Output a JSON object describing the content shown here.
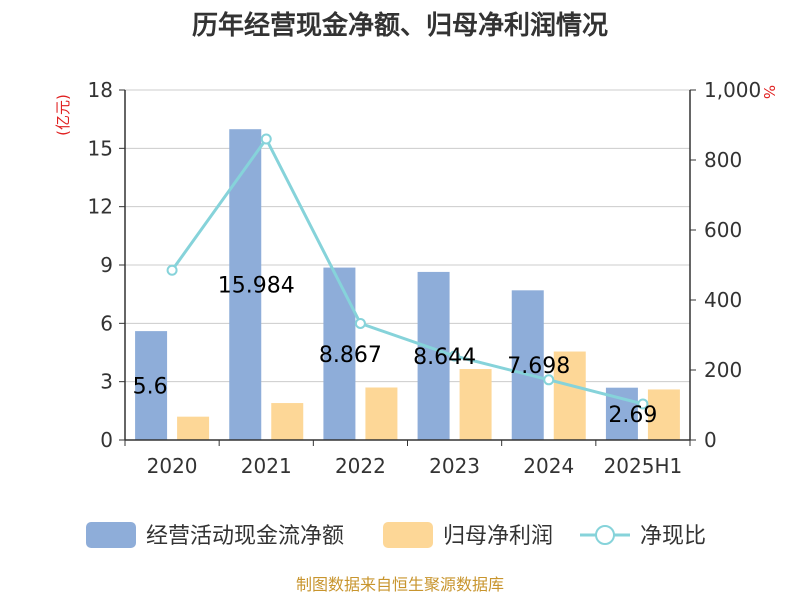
{
  "chart_data": {
    "type": "bar",
    "title": "历年经营现金净额、归母净利润情况",
    "categories": [
      "2020",
      "2021",
      "2022",
      "2023",
      "2024",
      "2025H1"
    ],
    "left_axis": {
      "unit": "(亿元)",
      "ylim": [
        0,
        18
      ],
      "ticks": [
        "0",
        "3",
        "6",
        "9",
        "12",
        "15",
        "18"
      ]
    },
    "right_axis": {
      "unit": "%",
      "ylim": [
        0,
        1000
      ],
      "ticks": [
        "0",
        "200",
        "400",
        "600",
        "800",
        "1,000"
      ]
    },
    "series": [
      {
        "name": "经营活动现金流净额",
        "type": "bar",
        "axis": "left",
        "color": "#8eadd9",
        "values": [
          5.6,
          15.984,
          8.867,
          8.644,
          7.698,
          2.69
        ],
        "labels": [
          "5.6",
          "15.984",
          "8.867",
          "8.644",
          "7.698",
          "2.69"
        ]
      },
      {
        "name": "归母净利润",
        "type": "bar",
        "axis": "left",
        "color": "#fdd797",
        "values": [
          1.2,
          1.9,
          2.7,
          3.65,
          4.55,
          2.6
        ]
      },
      {
        "name": "净现比",
        "type": "line",
        "axis": "right",
        "color": "#86d3da",
        "values": [
          485,
          860,
          333,
          240,
          172,
          103
        ]
      }
    ],
    "grid": true,
    "legend_position": "bottom",
    "source": "制图数据来自恒生聚源数据库"
  }
}
